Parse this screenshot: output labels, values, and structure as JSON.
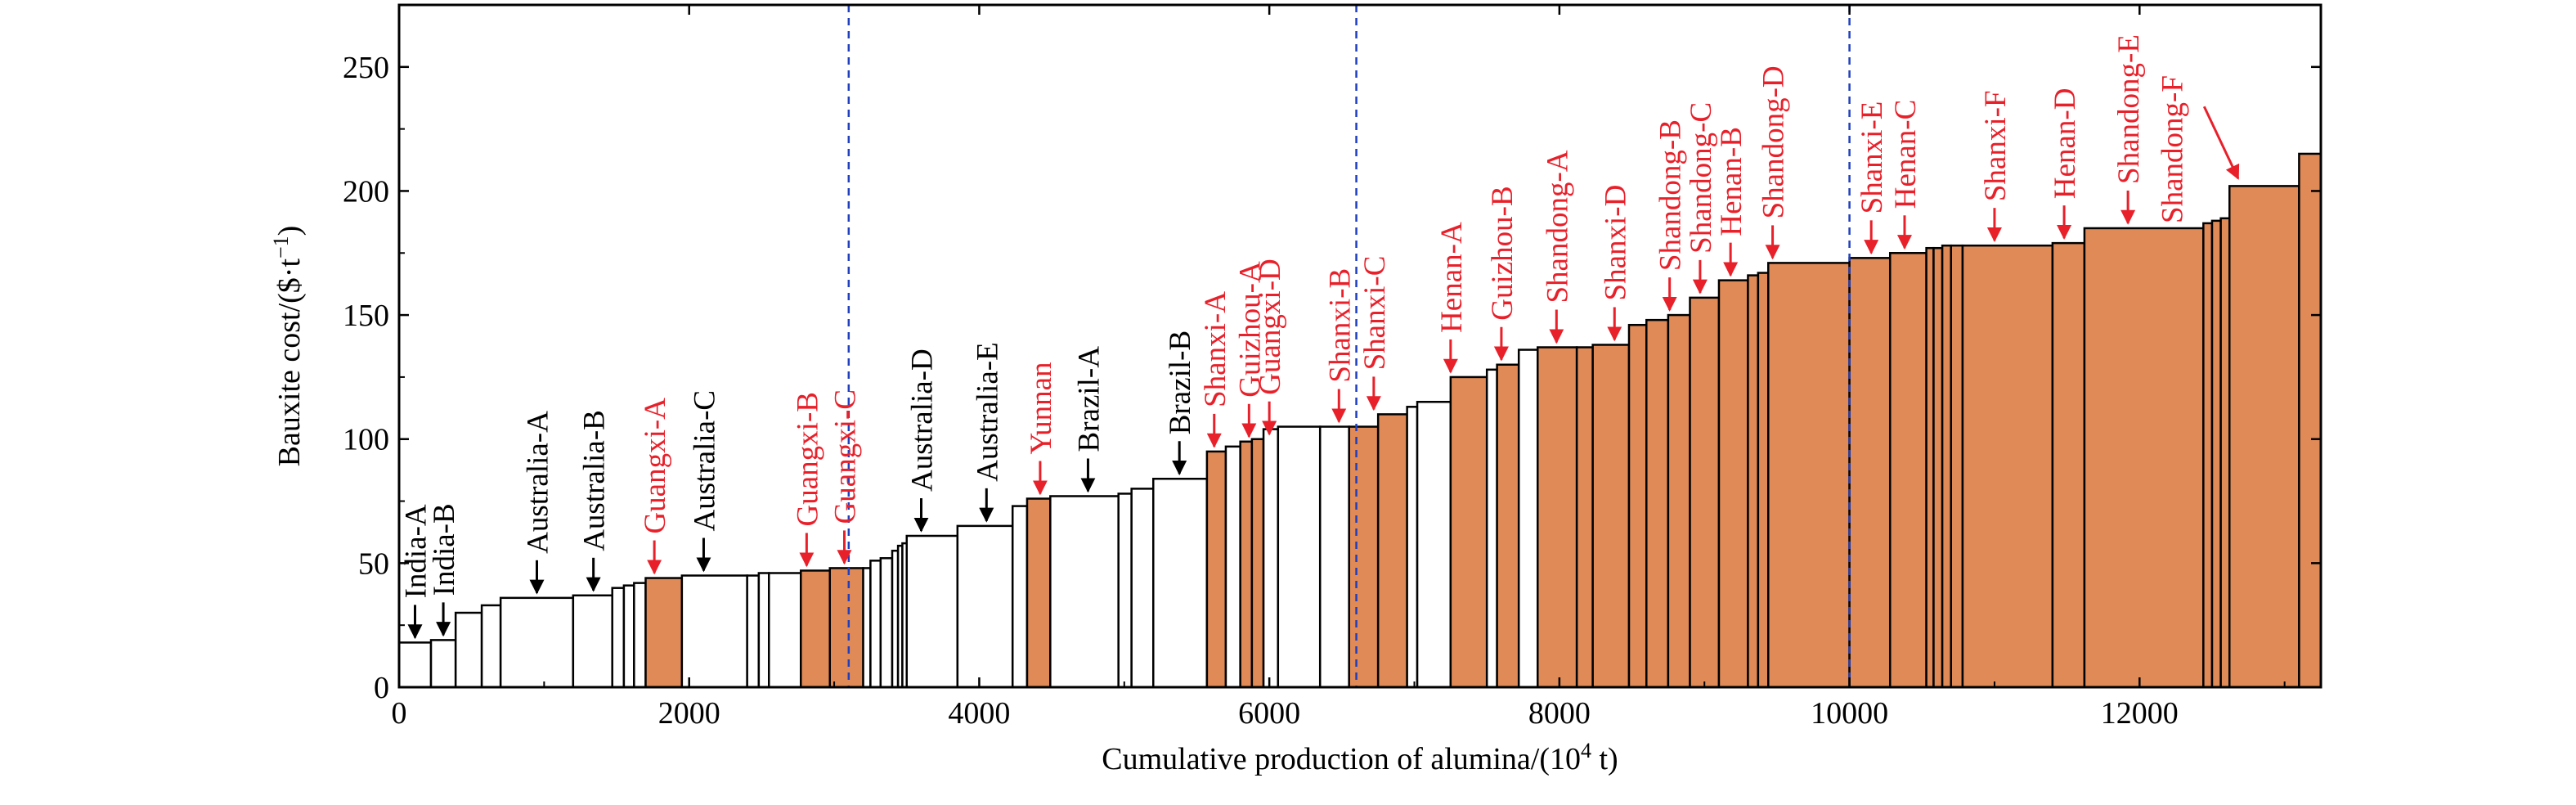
{
  "colors": {
    "china": "#e08a57",
    "foreign": "#ffffff",
    "china_label": "#e8202a",
    "foreign_label": "#000000",
    "divider": "#1f3fbf"
  },
  "chart_data": {
    "type": "bar",
    "subtype": "cost-curve (variable-width bars)",
    "title": "",
    "xlabel": "Cumulative production of alumina/(10",
    "xlabel_sup": "4",
    "xlabel_end": " t)",
    "ylabel": "Bauxite cost/($·t",
    "ylabel_sup": "−1",
    "ylabel_end": ")",
    "xlim": [
      0,
      13250
    ],
    "ylim": [
      0,
      275
    ],
    "xticks": [
      0,
      2000,
      4000,
      6000,
      8000,
      10000,
      12000
    ],
    "xtick_labels": [
      "0",
      "2000",
      "4000",
      "6000",
      "8000",
      "10000",
      "12000"
    ],
    "yticks": [
      0,
      50,
      100,
      150,
      200,
      250
    ],
    "ytick_labels": [
      "0",
      "50",
      "100",
      "150",
      "200",
      "250"
    ],
    "grid": false,
    "divider_x": [
      3100,
      6600,
      10000
    ],
    "bars": [
      {
        "x0": 0,
        "x1": 220,
        "y": 18,
        "china": false
      },
      {
        "x0": 220,
        "x1": 390,
        "y": 19,
        "china": false
      },
      {
        "x0": 390,
        "x1": 570,
        "y": 30,
        "china": false
      },
      {
        "x0": 570,
        "x1": 700,
        "y": 33,
        "china": false
      },
      {
        "x0": 700,
        "x1": 1200,
        "y": 36,
        "china": false
      },
      {
        "x0": 1200,
        "x1": 1470,
        "y": 37,
        "china": false
      },
      {
        "x0": 1470,
        "x1": 1550,
        "y": 40,
        "china": false
      },
      {
        "x0": 1550,
        "x1": 1620,
        "y": 41,
        "china": false
      },
      {
        "x0": 1620,
        "x1": 1700,
        "y": 42,
        "china": false
      },
      {
        "x0": 1700,
        "x1": 1950,
        "y": 44,
        "china": true
      },
      {
        "x0": 1950,
        "x1": 2400,
        "y": 45,
        "china": false
      },
      {
        "x0": 2400,
        "x1": 2480,
        "y": 45,
        "china": false
      },
      {
        "x0": 2480,
        "x1": 2550,
        "y": 46,
        "china": false
      },
      {
        "x0": 2550,
        "x1": 2770,
        "y": 46,
        "china": false
      },
      {
        "x0": 2770,
        "x1": 2970,
        "y": 47,
        "china": true
      },
      {
        "x0": 2970,
        "x1": 3200,
        "y": 48,
        "china": true
      },
      {
        "x0": 3200,
        "x1": 3250,
        "y": 48,
        "china": false
      },
      {
        "x0": 3250,
        "x1": 3320,
        "y": 51,
        "china": false
      },
      {
        "x0": 3320,
        "x1": 3400,
        "y": 52,
        "china": false
      },
      {
        "x0": 3400,
        "x1": 3440,
        "y": 55,
        "china": false
      },
      {
        "x0": 3440,
        "x1": 3470,
        "y": 57,
        "china": false
      },
      {
        "x0": 3470,
        "x1": 3500,
        "y": 58,
        "china": false
      },
      {
        "x0": 3500,
        "x1": 3850,
        "y": 61,
        "china": false
      },
      {
        "x0": 3850,
        "x1": 4230,
        "y": 65,
        "china": false
      },
      {
        "x0": 4230,
        "x1": 4330,
        "y": 73,
        "china": false
      },
      {
        "x0": 4330,
        "x1": 4490,
        "y": 76,
        "china": true
      },
      {
        "x0": 4490,
        "x1": 4960,
        "y": 77,
        "china": false
      },
      {
        "x0": 4960,
        "x1": 5050,
        "y": 78,
        "china": false
      },
      {
        "x0": 5050,
        "x1": 5200,
        "y": 80,
        "china": false
      },
      {
        "x0": 5200,
        "x1": 5570,
        "y": 84,
        "china": false
      },
      {
        "x0": 5570,
        "x1": 5700,
        "y": 95,
        "china": true
      },
      {
        "x0": 5700,
        "x1": 5800,
        "y": 97,
        "china": false
      },
      {
        "x0": 5800,
        "x1": 5880,
        "y": 99,
        "china": true
      },
      {
        "x0": 5880,
        "x1": 5960,
        "y": 100,
        "china": true
      },
      {
        "x0": 5960,
        "x1": 6060,
        "y": 104,
        "china": false
      },
      {
        "x0": 6060,
        "x1": 6350,
        "y": 105,
        "china": false
      },
      {
        "x0": 6350,
        "x1": 6550,
        "y": 105,
        "china": false
      },
      {
        "x0": 6550,
        "x1": 6750,
        "y": 105,
        "china": true
      },
      {
        "x0": 6750,
        "x1": 6950,
        "y": 110,
        "china": true
      },
      {
        "x0": 6950,
        "x1": 7020,
        "y": 113,
        "china": false
      },
      {
        "x0": 7020,
        "x1": 7250,
        "y": 115,
        "china": false
      },
      {
        "x0": 7250,
        "x1": 7500,
        "y": 125,
        "china": true
      },
      {
        "x0": 7500,
        "x1": 7570,
        "y": 128,
        "china": false
      },
      {
        "x0": 7570,
        "x1": 7720,
        "y": 130,
        "china": true
      },
      {
        "x0": 7720,
        "x1": 7850,
        "y": 136,
        "china": false
      },
      {
        "x0": 7850,
        "x1": 8120,
        "y": 137,
        "china": true
      },
      {
        "x0": 8120,
        "x1": 8230,
        "y": 137,
        "china": true
      },
      {
        "x0": 8230,
        "x1": 8480,
        "y": 138,
        "china": true
      },
      {
        "x0": 8480,
        "x1": 8600,
        "y": 146,
        "china": true
      },
      {
        "x0": 8600,
        "x1": 8750,
        "y": 148,
        "china": true
      },
      {
        "x0": 8750,
        "x1": 8900,
        "y": 150,
        "china": true
      },
      {
        "x0": 8900,
        "x1": 9100,
        "y": 157,
        "china": true
      },
      {
        "x0": 9100,
        "x1": 9300,
        "y": 164,
        "china": true
      },
      {
        "x0": 9300,
        "x1": 9370,
        "y": 166,
        "china": true
      },
      {
        "x0": 9370,
        "x1": 9440,
        "y": 167,
        "china": true
      },
      {
        "x0": 9440,
        "x1": 10000,
        "y": 171,
        "china": true
      },
      {
        "x0": 10000,
        "x1": 10280,
        "y": 173,
        "china": true
      },
      {
        "x0": 10280,
        "x1": 10530,
        "y": 175,
        "china": true
      },
      {
        "x0": 10530,
        "x1": 10580,
        "y": 177,
        "china": true
      },
      {
        "x0": 10580,
        "x1": 10640,
        "y": 177,
        "china": true
      },
      {
        "x0": 10640,
        "x1": 10700,
        "y": 178,
        "china": true
      },
      {
        "x0": 10700,
        "x1": 10780,
        "y": 178,
        "china": true
      },
      {
        "x0": 10780,
        "x1": 11400,
        "y": 178,
        "china": true
      },
      {
        "x0": 11400,
        "x1": 11620,
        "y": 179,
        "china": true
      },
      {
        "x0": 11620,
        "x1": 12440,
        "y": 185,
        "china": true
      },
      {
        "x0": 12440,
        "x1": 12500,
        "y": 187,
        "china": true
      },
      {
        "x0": 12500,
        "x1": 12560,
        "y": 188,
        "china": true
      },
      {
        "x0": 12560,
        "x1": 12620,
        "y": 189,
        "china": true
      },
      {
        "x0": 12620,
        "x1": 13100,
        "y": 202,
        "china": true
      },
      {
        "x0": 13100,
        "x1": 13250,
        "y": 215,
        "china": true
      }
    ],
    "annotations": [
      {
        "text": "India-A",
        "x": 110,
        "tip_y": 18,
        "china": false
      },
      {
        "text": "India-B",
        "x": 305,
        "tip_y": 19,
        "china": false
      },
      {
        "text": "Australia-A",
        "x": 950,
        "tip_y": 36,
        "china": false
      },
      {
        "text": "Australia-B",
        "x": 1340,
        "tip_y": 37,
        "china": false
      },
      {
        "text": "Guangxi-A",
        "x": 1760,
        "tip_y": 44,
        "china": true
      },
      {
        "text": "Australia-C",
        "x": 2100,
        "tip_y": 45,
        "china": false
      },
      {
        "text": "Guangxi-B",
        "x": 2810,
        "tip_y": 47,
        "china": true
      },
      {
        "text": "Guangxi-C",
        "x": 3070,
        "tip_y": 48,
        "china": true
      },
      {
        "text": "Australia-D",
        "x": 3600,
        "tip_y": 61,
        "china": false
      },
      {
        "text": "Australia-E",
        "x": 4050,
        "tip_y": 65,
        "china": false
      },
      {
        "text": "Yunnan",
        "x": 4420,
        "tip_y": 76,
        "china": true
      },
      {
        "text": "Brazil-A",
        "x": 4750,
        "tip_y": 77,
        "china": false
      },
      {
        "text": "Brazil-B",
        "x": 5380,
        "tip_y": 84,
        "china": false
      },
      {
        "text": "Shanxi-A",
        "x": 5620,
        "tip_y": 95,
        "china": true
      },
      {
        "text": "Guizhou-A",
        "x": 5860,
        "tip_y": 99,
        "china": true
      },
      {
        "text": "Guangxi-D",
        "x": 6000,
        "tip_y": 100,
        "china": true
      },
      {
        "text": "Shanxi-B",
        "x": 6480,
        "tip_y": 105,
        "china": true
      },
      {
        "text": "Shanxi-C",
        "x": 6720,
        "tip_y": 110,
        "china": true
      },
      {
        "text": "Henan-A",
        "x": 7250,
        "tip_y": 125,
        "china": true
      },
      {
        "text": "Guizhou-B",
        "x": 7600,
        "tip_y": 130,
        "china": true
      },
      {
        "text": "Shandong-A",
        "x": 7980,
        "tip_y": 137,
        "china": true
      },
      {
        "text": "Shanxi-D",
        "x": 8380,
        "tip_y": 138,
        "china": true
      },
      {
        "text": "Shandong-B",
        "x": 8760,
        "tip_y": 150,
        "china": true
      },
      {
        "text": "Shandong-C",
        "x": 8970,
        "tip_y": 157,
        "china": true
      },
      {
        "text": "Henan-B",
        "x": 9180,
        "tip_y": 164,
        "china": true
      },
      {
        "text": "Shandong-D",
        "x": 9470,
        "tip_y": 171,
        "china": true
      },
      {
        "text": "Shanxi-E",
        "x": 10150,
        "tip_y": 173,
        "china": true
      },
      {
        "text": "Henan-C",
        "x": 10380,
        "tip_y": 175,
        "china": true
      },
      {
        "text": "Shanxi-F",
        "x": 11000,
        "tip_y": 178,
        "china": true
      },
      {
        "text": "Henan-D",
        "x": 11480,
        "tip_y": 179,
        "china": true
      },
      {
        "text": "Shandong-E",
        "x": 11920,
        "tip_y": 185,
        "china": true
      },
      {
        "text": "Shandong-F",
        "x": 12220,
        "tip_y": 185,
        "china": true,
        "arrow_to": {
          "x": 12680,
          "y": 205
        }
      }
    ]
  }
}
